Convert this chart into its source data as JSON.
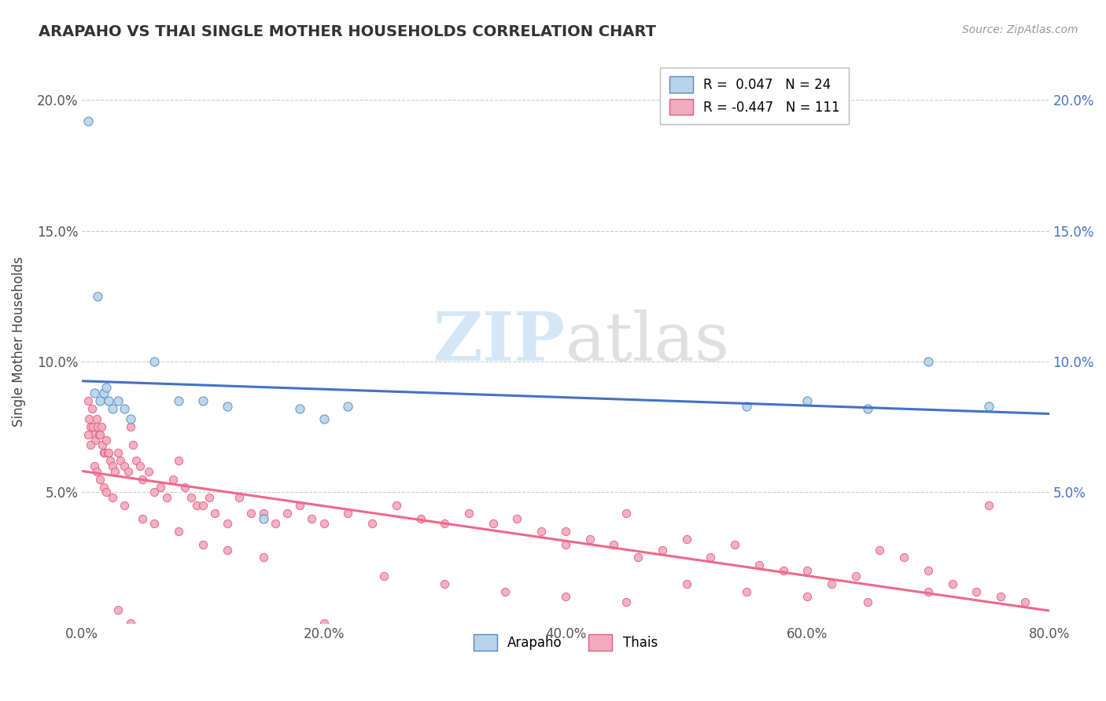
{
  "title": "ARAPAHO VS THAI SINGLE MOTHER HOUSEHOLDS CORRELATION CHART",
  "source": "Source: ZipAtlas.com",
  "ylabel": "Single Mother Households",
  "xlim": [
    0.0,
    0.8
  ],
  "ylim": [
    0.0,
    0.215
  ],
  "ytick_labels": [
    "",
    "5.0%",
    "10.0%",
    "15.0%",
    "20.0%"
  ],
  "ytick_values": [
    0.0,
    0.05,
    0.1,
    0.15,
    0.2
  ],
  "xtick_labels": [
    "0.0%",
    "20.0%",
    "40.0%",
    "60.0%",
    "80.0%"
  ],
  "xtick_values": [
    0.0,
    0.2,
    0.4,
    0.6,
    0.8
  ],
  "arapaho_color": "#b8d4ea",
  "thai_color": "#f4aabf",
  "arapaho_edge_color": "#5585c5",
  "thai_edge_color": "#e06080",
  "arapaho_line_color": "#4472c4",
  "thai_line_color": "#f06888",
  "legend_r_arapaho": "R =  0.047",
  "legend_n_arapaho": "N = 24",
  "legend_r_thai": "R = -0.447",
  "legend_n_thai": "N = 111",
  "arapaho_x": [
    0.005,
    0.01,
    0.013,
    0.015,
    0.018,
    0.02,
    0.022,
    0.025,
    0.03,
    0.035,
    0.04,
    0.06,
    0.08,
    0.1,
    0.12,
    0.15,
    0.18,
    0.2,
    0.22,
    0.55,
    0.6,
    0.65,
    0.7,
    0.75
  ],
  "arapaho_y": [
    0.192,
    0.088,
    0.125,
    0.085,
    0.088,
    0.09,
    0.085,
    0.082,
    0.085,
    0.082,
    0.078,
    0.1,
    0.085,
    0.085,
    0.083,
    0.04,
    0.082,
    0.078,
    0.083,
    0.083,
    0.085,
    0.082,
    0.1,
    0.083
  ],
  "thai_x": [
    0.005,
    0.006,
    0.007,
    0.008,
    0.009,
    0.01,
    0.011,
    0.012,
    0.013,
    0.014,
    0.015,
    0.016,
    0.017,
    0.018,
    0.019,
    0.02,
    0.021,
    0.022,
    0.023,
    0.025,
    0.027,
    0.03,
    0.032,
    0.035,
    0.038,
    0.04,
    0.042,
    0.045,
    0.048,
    0.05,
    0.055,
    0.06,
    0.065,
    0.07,
    0.075,
    0.08,
    0.085,
    0.09,
    0.095,
    0.1,
    0.105,
    0.11,
    0.12,
    0.13,
    0.14,
    0.15,
    0.16,
    0.17,
    0.18,
    0.19,
    0.2,
    0.22,
    0.24,
    0.26,
    0.28,
    0.3,
    0.32,
    0.34,
    0.36,
    0.38,
    0.4,
    0.42,
    0.44,
    0.46,
    0.48,
    0.5,
    0.52,
    0.54,
    0.56,
    0.58,
    0.6,
    0.62,
    0.64,
    0.66,
    0.68,
    0.7,
    0.72,
    0.74,
    0.76,
    0.78,
    0.005,
    0.007,
    0.01,
    0.012,
    0.015,
    0.018,
    0.02,
    0.025,
    0.03,
    0.035,
    0.04,
    0.05,
    0.06,
    0.08,
    0.1,
    0.12,
    0.15,
    0.2,
    0.25,
    0.3,
    0.35,
    0.4,
    0.45,
    0.5,
    0.55,
    0.6,
    0.65,
    0.7,
    0.75,
    0.4,
    0.45
  ],
  "thai_y": [
    0.085,
    0.078,
    0.075,
    0.082,
    0.075,
    0.072,
    0.07,
    0.078,
    0.075,
    0.072,
    0.072,
    0.075,
    0.068,
    0.065,
    0.065,
    0.07,
    0.065,
    0.065,
    0.062,
    0.06,
    0.058,
    0.065,
    0.062,
    0.06,
    0.058,
    0.075,
    0.068,
    0.062,
    0.06,
    0.055,
    0.058,
    0.05,
    0.052,
    0.048,
    0.055,
    0.062,
    0.052,
    0.048,
    0.045,
    0.045,
    0.048,
    0.042,
    0.038,
    0.048,
    0.042,
    0.042,
    0.038,
    0.042,
    0.045,
    0.04,
    0.038,
    0.042,
    0.038,
    0.045,
    0.04,
    0.038,
    0.042,
    0.038,
    0.04,
    0.035,
    0.03,
    0.032,
    0.03,
    0.025,
    0.028,
    0.032,
    0.025,
    0.03,
    0.022,
    0.02,
    0.02,
    0.015,
    0.018,
    0.028,
    0.025,
    0.02,
    0.015,
    0.012,
    0.01,
    0.008,
    0.072,
    0.068,
    0.06,
    0.058,
    0.055,
    0.052,
    0.05,
    0.048,
    0.005,
    0.045,
    0.0,
    0.04,
    0.038,
    0.035,
    0.03,
    0.028,
    0.025,
    0.0,
    0.018,
    0.015,
    0.012,
    0.01,
    0.008,
    0.015,
    0.012,
    0.01,
    0.008,
    0.012,
    0.045,
    0.035,
    0.042
  ]
}
